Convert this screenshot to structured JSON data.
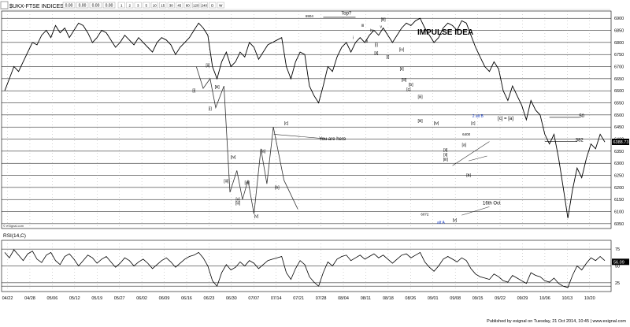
{
  "toolbar": {
    "symbol": "$UKX-FTSE INDICES",
    "readouts": [
      "0.00",
      "0.00",
      "0.00",
      "0.00"
    ],
    "intervals": [
      "1",
      "2",
      "3",
      "5",
      "10",
      "15",
      "30",
      "45",
      "60",
      "120",
      "240",
      "D",
      "W"
    ]
  },
  "source_text": "© eSignal.com",
  "rsi_label": "RSI(14,C)",
  "footer": "Published by esignal on Tuesday, 21 Oct 2014, 10:45 | www.esignal.com",
  "colors": {
    "price": "#000000",
    "grid": "#000000",
    "accent_blue": "#1a3fc4",
    "last_box": "#000000"
  },
  "chart_data": {
    "type": "line",
    "title": "IMPULSE IDEA",
    "y_ticks": [
      6050,
      6100,
      6150,
      6200,
      6250,
      6300,
      6350,
      6400,
      6450,
      6500,
      6550,
      6600,
      6650,
      6700,
      6750,
      6800,
      6850,
      6900
    ],
    "ylim": [
      6030,
      6930
    ],
    "last_price": "6388.73",
    "x_ticks": [
      "04/22",
      "04/28",
      "05/06",
      "05/12",
      "05/19",
      "05/27",
      "06/02",
      "06/09",
      "06/16",
      "06/23",
      "06/30",
      "07/07",
      "07/14",
      "07/21",
      "07/28",
      "08/04",
      "08/11",
      "08/18",
      "08/26",
      "09/01",
      "09/08",
      "09/15",
      "09/22",
      "09/29",
      "10/06",
      "10/13",
      "10/20"
    ],
    "price_series": {
      "name": "",
      "x": [
        0,
        1,
        2,
        3,
        4,
        5,
        6,
        7,
        8,
        9,
        10,
        11,
        12,
        13,
        14,
        15,
        16,
        17,
        18,
        19,
        20,
        21,
        22,
        23,
        24,
        25,
        26,
        27,
        28,
        29,
        30,
        31,
        32,
        33,
        34,
        35,
        36,
        37,
        38,
        39,
        40,
        41,
        42,
        43,
        44,
        45,
        46,
        47,
        48,
        49,
        50,
        51,
        52,
        53,
        54,
        55,
        56,
        57,
        58,
        59,
        60,
        61,
        62,
        63,
        64,
        65,
        66,
        67,
        68,
        69,
        70,
        71,
        72,
        73,
        74,
        75,
        76,
        77,
        78,
        79,
        80,
        81,
        82,
        83,
        84,
        85,
        86,
        87,
        88,
        89,
        90,
        91,
        92,
        93,
        94,
        95,
        96,
        97,
        98,
        99,
        100,
        101,
        102,
        103,
        104,
        105,
        106,
        107,
        108,
        109,
        110,
        111,
        112,
        113,
        114,
        115,
        116,
        117,
        118,
        119,
        120,
        121,
        122,
        123,
        124,
        125,
        126,
        127,
        128,
        129,
        130
      ],
      "y": [
        6600,
        6650,
        6700,
        6680,
        6720,
        6760,
        6800,
        6790,
        6830,
        6850,
        6820,
        6870,
        6840,
        6860,
        6820,
        6850,
        6880,
        6870,
        6840,
        6800,
        6820,
        6850,
        6840,
        6810,
        6780,
        6800,
        6830,
        6810,
        6790,
        6820,
        6800,
        6780,
        6760,
        6800,
        6820,
        6810,
        6790,
        6750,
        6780,
        6800,
        6820,
        6850,
        6880,
        6860,
        6830,
        6700,
        6650,
        6720,
        6760,
        6700,
        6720,
        6760,
        6740,
        6800,
        6780,
        6730,
        6760,
        6790,
        6800,
        6810,
        6820,
        6700,
        6650,
        6720,
        6760,
        6750,
        6620,
        6580,
        6550,
        6620,
        6700,
        6680,
        6740,
        6780,
        6800,
        6760,
        6800,
        6820,
        6800,
        6830,
        6850,
        6830,
        6860,
        6830,
        6800,
        6830,
        6860,
        6880,
        6870,
        6890,
        6900,
        6860,
        6830,
        6800,
        6820,
        6860,
        6880,
        6870,
        6850,
        6890,
        6880,
        6830,
        6780,
        6740,
        6700,
        6680,
        6720,
        6690,
        6600,
        6560,
        6620,
        6580,
        6540,
        6480,
        6560,
        6520,
        6500,
        6420,
        6380,
        6420,
        6320,
        6200,
        6073,
        6190,
        6280,
        6240,
        6320,
        6380,
        6360,
        6420,
        6388
      ]
    },
    "rsi": {
      "ylim": [
        12,
        88
      ],
      "levels": [
        75,
        50,
        25,
        20
      ],
      "tick_labels": [
        "75",
        "50",
        "25"
      ],
      "last_value": "56.09",
      "values": [
        70,
        62,
        74,
        66,
        58,
        68,
        72,
        60,
        55,
        66,
        70,
        58,
        52,
        64,
        68,
        60,
        50,
        58,
        66,
        62,
        54,
        60,
        64,
        56,
        48,
        54,
        62,
        58,
        50,
        56,
        60,
        54,
        46,
        52,
        58,
        62,
        56,
        48,
        54,
        60,
        64,
        66,
        70,
        62,
        50,
        28,
        20,
        40,
        52,
        44,
        48,
        56,
        50,
        58,
        54,
        46,
        52,
        58,
        60,
        62,
        64,
        40,
        30,
        46,
        58,
        52,
        34,
        26,
        20,
        40,
        56,
        50,
        60,
        64,
        66,
        58,
        62,
        66,
        60,
        64,
        68,
        62,
        66,
        60,
        54,
        60,
        66,
        68,
        62,
        66,
        70,
        56,
        48,
        42,
        50,
        60,
        64,
        60,
        56,
        62,
        58,
        46,
        38,
        34,
        32,
        30,
        38,
        34,
        28,
        26,
        36,
        32,
        28,
        24,
        40,
        36,
        34,
        28,
        26,
        32,
        24,
        20,
        18,
        36,
        50,
        44,
        54,
        62,
        58,
        64,
        58
      ]
    },
    "projection_path": {
      "x": [
        41.5,
        43,
        44.5,
        45.7,
        47.5,
        48.8,
        50.3,
        51.5,
        52.7,
        54,
        55.5,
        56.8,
        58.2,
        60.5,
        63.5
      ],
      "y": [
        6700,
        6610,
        6650,
        6530,
        6620,
        6180,
        6270,
        6150,
        6230,
        6090,
        6360,
        6215,
        6450,
        6230,
        6110
      ]
    },
    "annotations": [
      {
        "text": "6904",
        "x": 66,
        "y": 6904,
        "kind": "value"
      },
      {
        "text": "Top?",
        "x": 74,
        "y": 6915,
        "kind": "label"
      },
      {
        "text": "[iii]",
        "x": 82,
        "y": 6890,
        "kind": "wave"
      },
      {
        "text": "iii",
        "x": 77.5,
        "y": 6865,
        "kind": "wave"
      },
      {
        "text": "iv",
        "x": 79.5,
        "y": 6845,
        "kind": "wave"
      },
      {
        "text": "v",
        "x": 81.5,
        "y": 6860,
        "kind": "wave"
      },
      {
        "text": "i",
        "x": 75.5,
        "y": 6815,
        "kind": "wave"
      },
      {
        "text": "ii",
        "x": 78.5,
        "y": 6800,
        "kind": "wave"
      },
      {
        "text": "[i]",
        "x": 80.5,
        "y": 6785,
        "kind": "wave"
      },
      {
        "text": "[ii]",
        "x": 80.5,
        "y": 6750,
        "kind": "wave"
      },
      {
        "text": "[iv]",
        "x": 86,
        "y": 6765,
        "kind": "wave"
      },
      {
        "text": "[ii]",
        "x": 86,
        "y": 6685,
        "kind": "wave"
      },
      {
        "text": "[iii]",
        "x": 86.5,
        "y": 6640,
        "kind": "wave"
      },
      {
        "text": "[b]",
        "x": 88,
        "y": 6620,
        "kind": "wave"
      },
      {
        "text": "[c]",
        "x": 87.5,
        "y": 6600,
        "kind": "wave"
      },
      {
        "text": "[iii]",
        "x": 90,
        "y": 6570,
        "kind": "wave"
      },
      {
        "text": "[iii]",
        "x": 90,
        "y": 6470,
        "kind": "wave"
      },
      {
        "text": "[iv]",
        "x": 93.5,
        "y": 6460,
        "kind": "wave"
      },
      {
        "text": "[ii]",
        "x": 95.5,
        "y": 6350,
        "kind": "wave"
      },
      {
        "text": "[ii]",
        "x": 95.5,
        "y": 6330,
        "kind": "wave"
      },
      {
        "text": "[iii]",
        "x": 95.5,
        "y": 6310,
        "kind": "wave"
      },
      {
        "text": "6072",
        "x": 91,
        "y": 6083,
        "kind": "value"
      },
      {
        "text": "[v]",
        "x": 97.5,
        "y": 6060,
        "kind": "wave"
      },
      {
        "text": "alt A",
        "x": 94.5,
        "y": 6050,
        "kind": "blue"
      },
      {
        "text": "[a]",
        "x": 99.5,
        "y": 6370,
        "kind": "wave"
      },
      {
        "text": "[b]",
        "x": 100.5,
        "y": 6245,
        "kind": "wave"
      },
      {
        "text": "6400",
        "x": 100,
        "y": 6415,
        "kind": "value"
      },
      {
        "text": "[c]",
        "x": 101.5,
        "y": 6460,
        "kind": "wave"
      },
      {
        "text": "2 alt B",
        "x": 102.5,
        "y": 6490,
        "kind": "blue"
      },
      {
        "text": "[c] = [a]",
        "x": 108.5,
        "y": 6480,
        "kind": "label"
      },
      {
        "text": "50",
        "x": 125,
        "y": 6490,
        "kind": "label"
      },
      {
        "text": "382",
        "x": 124.5,
        "y": 6390,
        "kind": "label"
      },
      {
        "text": "16th Oct",
        "x": 105.5,
        "y": 6130,
        "kind": "label"
      },
      {
        "text": "You are here",
        "x": 71,
        "y": 6395,
        "kind": "label"
      },
      {
        "text": "[i]",
        "x": 41,
        "y": 6595,
        "kind": "wave"
      },
      {
        "text": "[ii]",
        "x": 44,
        "y": 6700,
        "kind": "wave"
      },
      {
        "text": "[iii]",
        "x": 46,
        "y": 6610,
        "kind": "wave"
      },
      {
        "text": "[i]",
        "x": 44.5,
        "y": 6520,
        "kind": "wave"
      },
      {
        "text": "[iv]",
        "x": 49.5,
        "y": 6320,
        "kind": "wave"
      },
      {
        "text": "[iii]",
        "x": 48,
        "y": 6220,
        "kind": "wave"
      },
      {
        "text": "[iv]",
        "x": 52.5,
        "y": 6215,
        "kind": "wave"
      },
      {
        "text": "[v]",
        "x": 50.5,
        "y": 6145,
        "kind": "wave"
      },
      {
        "text": "[iii]",
        "x": 50.5,
        "y": 6130,
        "kind": "wave"
      },
      {
        "text": "[v]",
        "x": 54.5,
        "y": 6075,
        "kind": "wave"
      },
      {
        "text": "[a]",
        "x": 56,
        "y": 6345,
        "kind": "wave"
      },
      {
        "text": "[b]",
        "x": 59,
        "y": 6195,
        "kind": "wave"
      },
      {
        "text": "[c]",
        "x": 61,
        "y": 6460,
        "kind": "wave"
      },
      {
        "text": "[i]",
        "x": 83,
        "y": 6735,
        "kind": "wave"
      }
    ]
  }
}
